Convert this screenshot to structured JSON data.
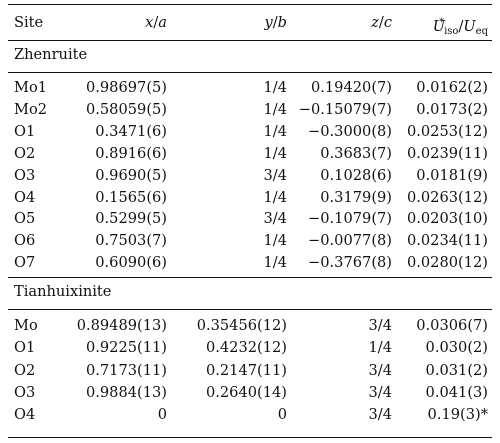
{
  "header": {
    "site": "Site",
    "x_var": "x",
    "x_param": "a",
    "y_var": "y",
    "y_param": "b",
    "z_var": "z",
    "z_param": "c",
    "u_iso_sym": "U",
    "u_iso_sub": "iso",
    "u_iso_star": "*",
    "u_eq_sym": "U",
    "u_eq_sub": "eq"
  },
  "sections": [
    {
      "title": "Zhenruite",
      "rows": [
        {
          "site": "Mo1",
          "x": "0.98697(5)",
          "y": "1/4",
          "z": "0.19420(7)",
          "u": "0.0162(2)"
        },
        {
          "site": "Mo2",
          "x": "0.58059(5)",
          "y": "1/4",
          "z": "−0.15079(7)",
          "u": "0.0173(2)"
        },
        {
          "site": "O1",
          "x": "0.3471(6)",
          "y": "1/4",
          "z": "−0.3000(8)",
          "u": "0.0253(12)"
        },
        {
          "site": "O2",
          "x": "0.8916(6)",
          "y": "1/4",
          "z": "0.3683(7)",
          "u": "0.0239(11)"
        },
        {
          "site": "O3",
          "x": "0.9690(5)",
          "y": "3/4",
          "z": "0.1028(6)",
          "u": "0.0181(9)"
        },
        {
          "site": "O4",
          "x": "0.1565(6)",
          "y": "1/4",
          "z": "0.3179(9)",
          "u": "0.0263(12)"
        },
        {
          "site": "O5",
          "x": "0.5299(5)",
          "y": "3/4",
          "z": "−0.1079(7)",
          "u": "0.0203(10)"
        },
        {
          "site": "O6",
          "x": "0.7503(7)",
          "y": "1/4",
          "z": "−0.0077(8)",
          "u": "0.0234(11)"
        },
        {
          "site": "O7",
          "x": "0.6090(6)",
          "y": "1/4",
          "z": "−0.3767(8)",
          "u": "0.0280(12)"
        }
      ]
    },
    {
      "title": "Tianhuixinite",
      "rows": [
        {
          "site": "Mo",
          "x": "0.89489(13)",
          "y": "0.35456(12)",
          "z": "3/4",
          "u": "0.0306(7)"
        },
        {
          "site": "O1",
          "x": "0.9225(11)",
          "y": "0.4232(12)",
          "z": "1/4",
          "u": "0.030(2)"
        },
        {
          "site": "O2",
          "x": "0.7173(11)",
          "y": "0.2147(11)",
          "z": "3/4",
          "u": "0.031(2)"
        },
        {
          "site": "O3",
          "x": "0.9884(13)",
          "y": "0.2640(14)",
          "z": "3/4",
          "u": "0.041(3)"
        },
        {
          "site": "O4",
          "x": "0",
          "y": "0",
          "z": "3/4",
          "u": "0.19(3)*"
        }
      ]
    }
  ]
}
